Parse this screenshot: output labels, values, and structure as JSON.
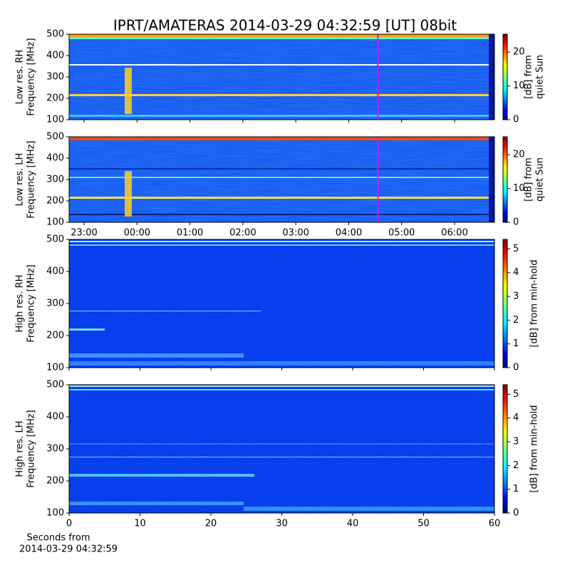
{
  "chart_data": [
    {
      "type": "spectrogram",
      "title": "IPRT/AMATERAS 2014-03-29 04:32:59 [UT]   08bit",
      "ylabel": [
        "Low res. RH",
        "Frequency [MHz]"
      ],
      "ylim": [
        100,
        500
      ],
      "yticks": [
        100,
        200,
        300,
        400,
        500
      ],
      "xlim": [
        -1.283,
        6.754
      ],
      "marker": {
        "x": 4.55,
        "color": "#ff00ff"
      },
      "colorbar": {
        "label": [
          "[dB] from",
          "quiet Sun"
        ],
        "lim": [
          0,
          25.3
        ],
        "ticks": [
          0,
          10,
          20
        ]
      }
    },
    {
      "type": "spectrogram",
      "ylabel": [
        "Low res. LH",
        "Frequency [MHz]"
      ],
      "ylim": [
        100,
        500
      ],
      "yticks": [
        100,
        200,
        300,
        400,
        500
      ],
      "xlim": [
        -1.283,
        6.754
      ],
      "xticks": [
        {
          "value": -1,
          "label": "23:00"
        },
        {
          "value": 0,
          "label": "00:00"
        },
        {
          "value": 1,
          "label": "01:00"
        },
        {
          "value": 2,
          "label": "02:00"
        },
        {
          "value": 3,
          "label": "03:00"
        },
        {
          "value": 4,
          "label": "04:00"
        },
        {
          "value": 5,
          "label": "05:00"
        },
        {
          "value": 6,
          "label": "06:00"
        }
      ],
      "marker": {
        "x": 4.55,
        "color": "#ff00ff"
      },
      "colorbar": {
        "label": [
          "[dB] from",
          "quiet Sun"
        ],
        "lim": [
          0,
          25.3
        ],
        "ticks": [
          0,
          10,
          20
        ]
      }
    },
    {
      "type": "spectrogram",
      "ylabel": [
        "High res. RH",
        "Frequency [MHz]"
      ],
      "ylim": [
        100,
        500
      ],
      "yticks": [
        100,
        200,
        300,
        400,
        500
      ],
      "xlim": [
        0,
        60
      ],
      "colorbar": {
        "label": [
          "[dB] from min-hold"
        ],
        "lim": [
          0,
          5.4
        ],
        "ticks": [
          0,
          1,
          2,
          3,
          4,
          5
        ]
      }
    },
    {
      "type": "spectrogram",
      "ylabel": [
        "High res. LH",
        "Frequency [MHz]"
      ],
      "ylim": [
        100,
        500
      ],
      "yticks": [
        100,
        200,
        300,
        400,
        500
      ],
      "xlim": [
        0,
        60
      ],
      "xticks": [
        0,
        10,
        20,
        30,
        40,
        50,
        60
      ],
      "xlabel": [
        "Seconds from",
        "2014-03-29 04:32:59"
      ],
      "colorbar": {
        "label": [
          "[dB] from min-hold"
        ],
        "lim": [
          0,
          5.4
        ],
        "ticks": [
          0,
          1,
          2,
          3,
          4,
          5
        ]
      }
    }
  ]
}
